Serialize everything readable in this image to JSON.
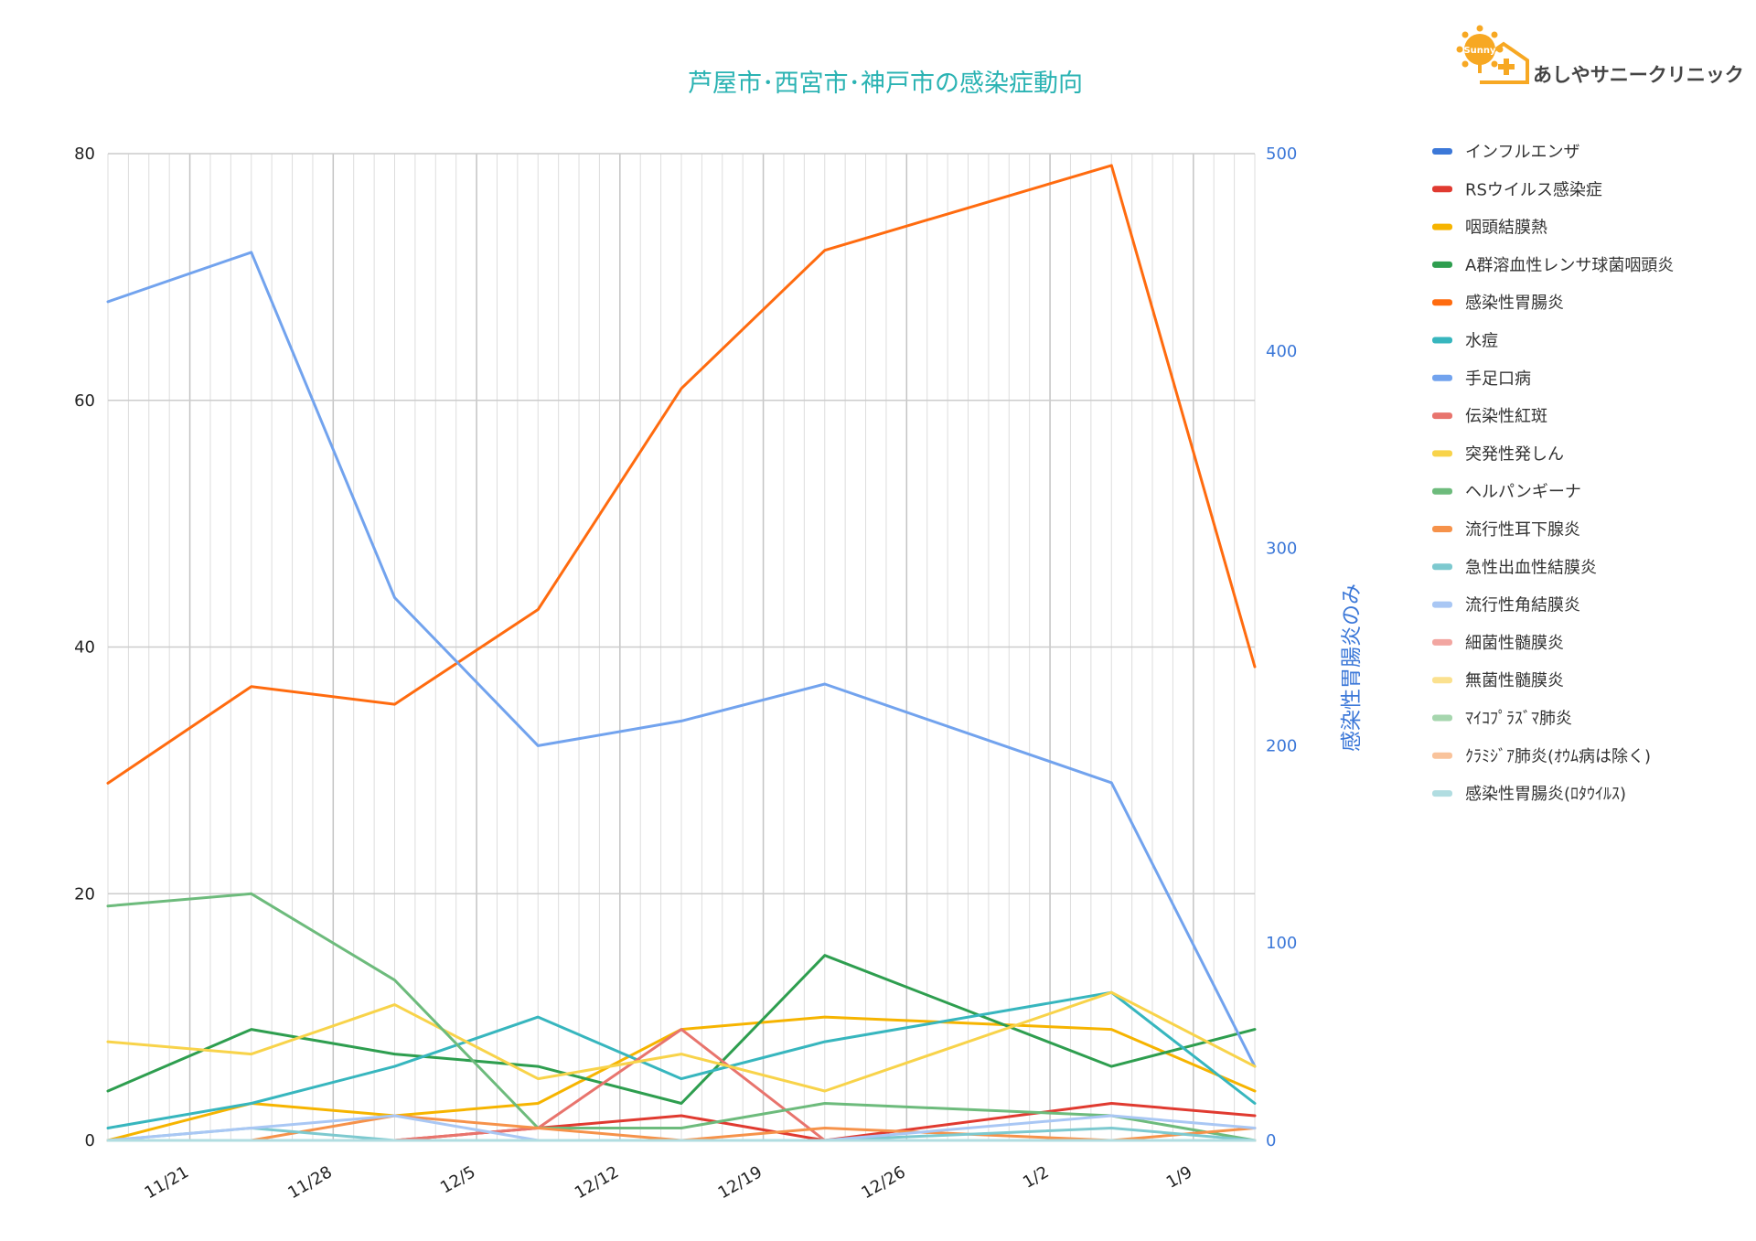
{
  "logo": {
    "text": "あしやサニークリニック",
    "badge": "Sunny"
  },
  "chart_data": {
    "type": "line",
    "title": "芦屋市･西宮市･神戸市の感染症動向",
    "xlabel": "",
    "ylabel": "",
    "y2label": "感染性胃腸炎のみ",
    "ylim": [
      0,
      80
    ],
    "y2lim": [
      0,
      500
    ],
    "yticks": [
      "0",
      "20",
      "40",
      "60",
      "80"
    ],
    "y2ticks": [
      "0",
      "100",
      "200",
      "300",
      "400",
      "500"
    ],
    "xlim": [
      "2023-11-17",
      "2024-01-12"
    ],
    "xticks": [
      {
        "date": "2023-11-21",
        "label": "11/21"
      },
      {
        "date": "2023-11-28",
        "label": "11/28"
      },
      {
        "date": "2023-12-05",
        "label": "12/5"
      },
      {
        "date": "2023-12-12",
        "label": "12/12"
      },
      {
        "date": "2023-12-19",
        "label": "12/19"
      },
      {
        "date": "2023-12-26",
        "label": "12/26"
      },
      {
        "date": "2024-01-02",
        "label": "1/2"
      },
      {
        "date": "2024-01-09",
        "label": "1/9"
      }
    ],
    "x": [
      "2023-11-17",
      "2023-11-24",
      "2023-12-01",
      "2023-12-08",
      "2023-12-15",
      "2023-12-22",
      "2024-01-05",
      "2024-01-12"
    ],
    "grid": true,
    "legend_position": "right",
    "series": [
      {
        "name": "インフルエンザ",
        "color": "#3c78d8",
        "axis": "left",
        "values": [
          null,
          null,
          null,
          null,
          null,
          null,
          null,
          null
        ]
      },
      {
        "name": "RSウイルス感染症",
        "color": "#e03a30",
        "axis": "left",
        "values": [
          0,
          0,
          0,
          1,
          2,
          0,
          3,
          2
        ]
      },
      {
        "name": "咽頭結膜熱",
        "color": "#f6b400",
        "axis": "left",
        "values": [
          0,
          3,
          2,
          3,
          9,
          10,
          9,
          4
        ]
      },
      {
        "name": "A群溶血性レンサ球菌咽頭炎",
        "color": "#2e9e4f",
        "axis": "left",
        "values": [
          4,
          9,
          7,
          6,
          3,
          15,
          6,
          9
        ]
      },
      {
        "name": "感染性胃腸炎",
        "color": "#ff6b0f",
        "axis": "right",
        "values": [
          181,
          230,
          221,
          269,
          381,
          451,
          494,
          240
        ]
      },
      {
        "name": "水痘",
        "color": "#37b6be",
        "axis": "left",
        "values": [
          1,
          3,
          6,
          10,
          5,
          8,
          12,
          3
        ]
      },
      {
        "name": "手足口病",
        "color": "#72a3ee",
        "axis": "left",
        "values": [
          68,
          72,
          44,
          32,
          34,
          37,
          29,
          6
        ]
      },
      {
        "name": "伝染性紅斑",
        "color": "#e8746d",
        "axis": "left",
        "values": [
          0,
          0,
          0,
          1,
          9,
          0,
          0,
          0
        ]
      },
      {
        "name": "突発性発しん",
        "color": "#f8d34a",
        "axis": "left",
        "values": [
          8,
          7,
          11,
          5,
          7,
          4,
          12,
          6
        ]
      },
      {
        "name": "ヘルパンギーナ",
        "color": "#6dbb7c",
        "axis": "left",
        "values": [
          19,
          20,
          13,
          1,
          1,
          3,
          2,
          0
        ]
      },
      {
        "name": "流行性耳下腺炎",
        "color": "#f6924a",
        "axis": "left",
        "values": [
          0,
          0,
          2,
          1,
          0,
          1,
          0,
          1
        ]
      },
      {
        "name": "急性出血性結膜炎",
        "color": "#7dc9cf",
        "axis": "left",
        "values": [
          0,
          1,
          0,
          0,
          0,
          0,
          1,
          0
        ]
      },
      {
        "name": "流行性角結膜炎",
        "color": "#a9c7f4",
        "axis": "left",
        "values": [
          0,
          1,
          2,
          0,
          0,
          0,
          2,
          1
        ]
      },
      {
        "name": "細菌性髄膜炎",
        "color": "#f2a6a1",
        "axis": "left",
        "values": [
          0,
          0,
          0,
          0,
          0,
          0,
          0,
          0
        ]
      },
      {
        "name": "無菌性髄膜炎",
        "color": "#fbe18f",
        "axis": "left",
        "values": [
          0,
          0,
          0,
          0,
          0,
          0,
          0,
          0
        ]
      },
      {
        "name": "ﾏｲｺﾌﾟﾗｽﾞﾏ肺炎",
        "color": "#a6d6ae",
        "axis": "left",
        "values": [
          0,
          0,
          0,
          0,
          0,
          0,
          0,
          0
        ]
      },
      {
        "name": "ｸﾗﾐｼﾞｱ肺炎(ｵｳﾑ病は除く)",
        "color": "#f9c39b",
        "axis": "left",
        "values": [
          0,
          0,
          0,
          0,
          0,
          0,
          0,
          0
        ]
      },
      {
        "name": "感染性胃腸炎(ﾛﾀｳｲﾙｽ)",
        "color": "#b1dde1",
        "axis": "left",
        "values": [
          0,
          0,
          0,
          0,
          0,
          0,
          0,
          0
        ]
      }
    ]
  }
}
